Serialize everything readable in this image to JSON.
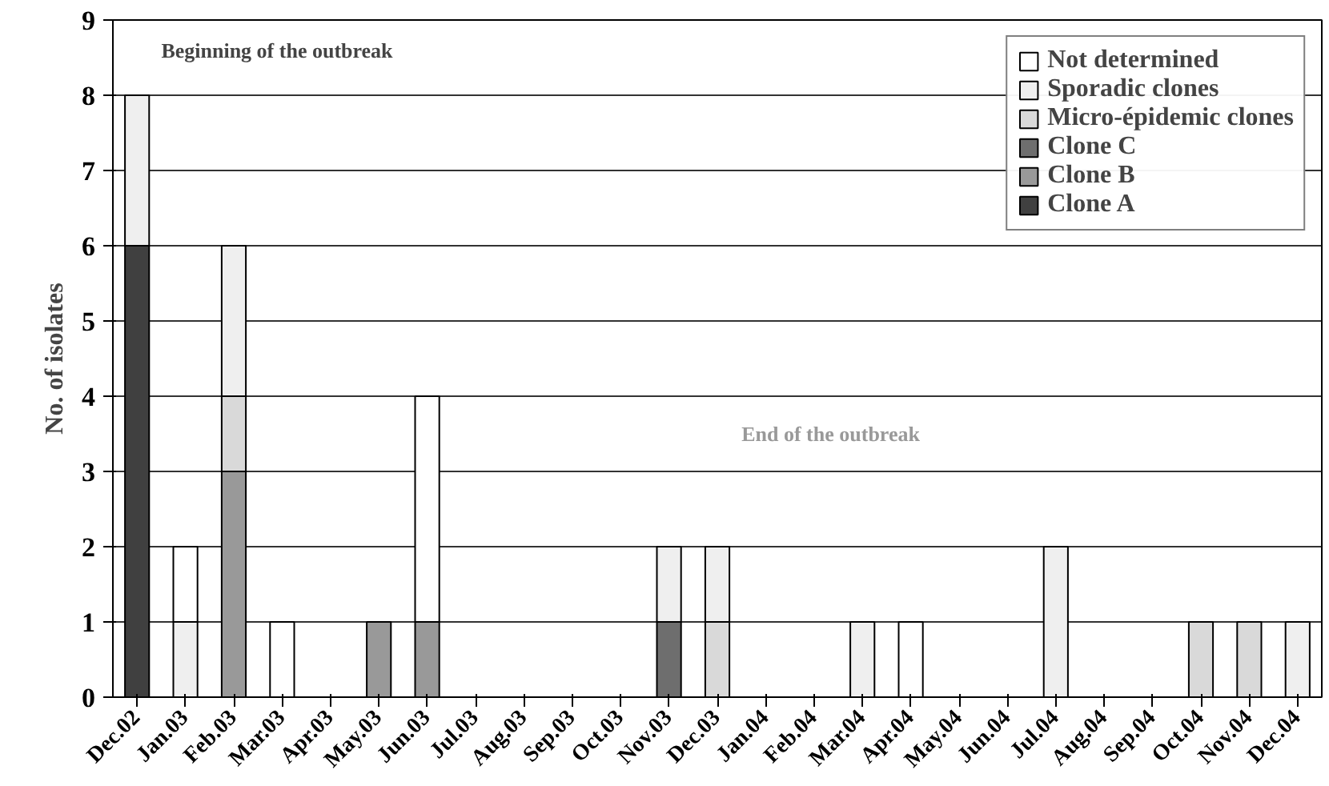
{
  "chart_data": {
    "type": "bar",
    "stacked": true,
    "ylabel": "No. of isolates",
    "categories": [
      "Dec.02",
      "Jan.03",
      "Feb.03",
      "Mar.03",
      "Apr.03",
      "May.03",
      "Jun.03",
      "Jul.03",
      "Aug.03",
      "Sep.03",
      "Oct.03",
      "Nov.03",
      "Dec.03",
      "Jan.04",
      "Feb.04",
      "Mar.04",
      "Apr.04",
      "May.04",
      "Jun.04",
      "Jul.04",
      "Aug.04",
      "Sep.04",
      "Oct.04",
      "Nov.04",
      "Dec.04"
    ],
    "series": [
      {
        "name": "Clone A",
        "color": "#404040",
        "values": [
          6,
          0,
          0,
          0,
          0,
          0,
          0,
          0,
          0,
          0,
          0,
          0,
          0,
          0,
          0,
          0,
          0,
          0,
          0,
          0,
          0,
          0,
          0,
          0,
          0
        ]
      },
      {
        "name": "Clone B",
        "color": "#999999",
        "values": [
          0,
          0,
          3,
          0,
          0,
          1,
          1,
          0,
          0,
          0,
          0,
          0,
          0,
          0,
          0,
          0,
          0,
          0,
          0,
          0,
          0,
          0,
          0,
          0,
          0
        ]
      },
      {
        "name": "Clone C",
        "color": "#6e6e6e",
        "values": [
          0,
          0,
          0,
          0,
          0,
          0,
          0,
          0,
          0,
          0,
          0,
          1,
          0,
          0,
          0,
          0,
          0,
          0,
          0,
          0,
          0,
          0,
          0,
          0,
          0
        ]
      },
      {
        "name": "Micro-épidemic clones",
        "color": "#d9d9d9",
        "values": [
          0,
          0,
          1,
          0,
          0,
          0,
          0,
          0,
          0,
          0,
          0,
          0,
          1,
          0,
          0,
          0,
          0,
          0,
          0,
          0,
          0,
          0,
          1,
          1,
          0
        ]
      },
      {
        "name": "Sporadic clones",
        "color": "#efefef",
        "values": [
          2,
          1,
          2,
          0,
          0,
          0,
          0,
          0,
          0,
          0,
          0,
          1,
          1,
          0,
          0,
          1,
          0,
          0,
          0,
          2,
          0,
          0,
          0,
          0,
          1
        ]
      },
      {
        "name": "Not determined",
        "color": "#ffffff",
        "values": [
          0,
          1,
          0,
          1,
          0,
          0,
          3,
          0,
          0,
          0,
          0,
          0,
          0,
          0,
          0,
          0,
          1,
          0,
          0,
          0,
          0,
          0,
          0,
          0,
          0
        ]
      }
    ],
    "ylim": [
      0,
      9
    ],
    "yticks": [
      0,
      1,
      2,
      3,
      4,
      5,
      6,
      7,
      8,
      9
    ],
    "grid": "y",
    "legend": "top right",
    "annotations": [
      "Beginning of the outbreak",
      "End of the outbreak"
    ]
  }
}
